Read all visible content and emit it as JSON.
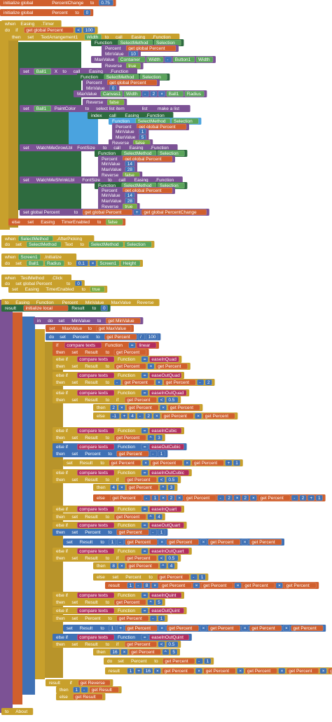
{
  "lines": [
    [
      "initialize global",
      "PercentChange",
      "to",
      "0.75"
    ],
    [
      "initialize global",
      "Percent",
      "to",
      "0"
    ],
    [
      "when",
      "Easing",
      ".Timer"
    ],
    [
      "do",
      "if",
      "get global Percent",
      "<",
      "100"
    ],
    [
      "then",
      "set",
      "TextArrangement1",
      "Width",
      "to",
      "call",
      "Easing",
      ".Function"
    ],
    [
      "Function",
      "SelectMethod",
      "Selection"
    ],
    [
      "Percent",
      "get global Percent"
    ],
    [
      "MinValue",
      "10"
    ],
    [
      "MaxValue",
      "Container",
      "Width",
      "-",
      "Button1",
      "Width"
    ],
    [
      "Reverse",
      "true"
    ],
    [
      "set",
      "Ball1",
      "X",
      "to",
      "call",
      "Easing",
      ".Function"
    ],
    [
      "Function",
      "SelectMethod",
      "Selection"
    ],
    [
      "Percent",
      "get global Percent"
    ],
    [
      "MinValue",
      "0"
    ],
    [
      "MaxValue",
      "Canvas1",
      "Width",
      "-",
      "2",
      "×",
      "Ball1",
      "Radius"
    ],
    [
      "Reverse",
      "false"
    ],
    [
      "set",
      "Ball1",
      "PaintColor",
      "to",
      "select list item",
      "list",
      "make a list"
    ],
    [
      "index",
      "call",
      "Easing",
      ".Function"
    ],
    [
      "Function",
      "SelectMethod",
      "Selection"
    ],
    [
      "Percent",
      "get global Percent"
    ],
    [
      "MinValue",
      "1"
    ],
    [
      "MaxValue",
      "5"
    ],
    [
      "Reverse",
      "false"
    ],
    [
      "set",
      "WatchMeGrowLbl",
      "FontSize",
      "to",
      "call",
      "Easing",
      ".Function"
    ],
    [
      "Function",
      "SelectMethod",
      "Selection"
    ],
    [
      "Percent",
      "get global Percent"
    ],
    [
      "MinValue",
      "14"
    ],
    [
      "MaxValue",
      "28"
    ],
    [
      "Reverse",
      "false"
    ],
    [
      "set",
      "WatchMeShrinkLbl",
      "FontSize",
      "to",
      "call",
      "Easing",
      ".Function"
    ],
    [
      "Function",
      "SelectMethod",
      "Selection"
    ],
    [
      "Percent",
      "get global Percent"
    ],
    [
      "MinValue",
      "14"
    ],
    [
      "MaxValue",
      "28"
    ],
    [
      "Reverse",
      "true"
    ],
    [
      "set global Percent",
      "to",
      "get global Percent",
      "+",
      "get global PercentChange"
    ],
    [
      "else",
      "set",
      "Easing",
      "TimerEnabled",
      "to",
      "false"
    ],
    [
      "when",
      "SelectMethod",
      ".AfterPicking"
    ],
    [
      "do",
      "set",
      "SelectMethod",
      "Text",
      "to",
      "SelectMethod",
      "Selection"
    ],
    [
      "when",
      "Screen1",
      ".Initialize"
    ],
    [
      "do",
      "set",
      "Ball1",
      "Radius",
      "to",
      "0.1",
      "×",
      "Screen1",
      "Height"
    ],
    [
      "when",
      "TestMethod",
      ".Click"
    ],
    [
      "do",
      "set global Percent",
      "to",
      "0"
    ],
    [
      "set",
      "Easing",
      "TimerEnabled",
      "to",
      "true"
    ],
    [
      "to",
      "Easing",
      "Function",
      "Percent",
      "MinValue",
      "MaxValue",
      "Reverse"
    ],
    [
      "result",
      "initialize local",
      "Result",
      "to",
      "0"
    ],
    [
      "in",
      "do",
      "set",
      "MinValue",
      "to",
      "get MinValue"
    ],
    [
      "set",
      "MaxValue",
      "to",
      "get MaxValue"
    ],
    [
      "do",
      "set",
      "Percent",
      "to",
      "get Percent",
      "/",
      "100"
    ],
    [
      "if",
      "compare texts",
      "Function",
      "=",
      "linear"
    ],
    [
      "then",
      "set",
      "Result",
      "to",
      "get Percent"
    ],
    [
      "else if",
      "compare texts",
      "Function",
      "=",
      "easeInQuad"
    ],
    [
      "then",
      "set",
      "Result",
      "to",
      "get Percent",
      "×",
      "get Percent"
    ],
    [
      "else if",
      "compare texts",
      "Function",
      "=",
      "easeOutQuad"
    ],
    [
      "then",
      "set",
      "Result",
      "to",
      "-",
      "get Percent",
      "×",
      "get Percent",
      "-",
      "2"
    ],
    [
      "else if",
      "compare texts",
      "Function",
      "=",
      "easeInOutQuad"
    ],
    [
      "then",
      "set",
      "Result",
      "to",
      "if",
      "get Percent",
      "<",
      "0.5"
    ],
    [
      "then",
      "2",
      "×",
      "get Percent",
      "×",
      "get Percent"
    ],
    [
      "else",
      "-1",
      "+",
      "4",
      "-",
      "2",
      "×",
      "get Percent",
      "×",
      "get Percent"
    ],
    [
      "else if",
      "compare texts",
      "Function",
      "=",
      "easeInCubic"
    ],
    [
      "then",
      "set",
      "Result",
      "to",
      "get Percent",
      "^",
      "3"
    ],
    [
      "else if",
      "compare texts",
      "Function",
      "=",
      "easeOutCubic"
    ],
    [
      "then",
      "set",
      "Percent",
      "to",
      "get Percent",
      "-",
      "1"
    ],
    [
      "set",
      "Result",
      "to",
      "get Percent",
      "×",
      "get Percent",
      "×",
      "get Percent",
      "+",
      "1"
    ],
    [
      "else if",
      "compare texts",
      "Function",
      "=",
      "easeInOutCubic"
    ],
    [
      "then",
      "set",
      "Result",
      "to",
      "if",
      "get Percent",
      "<",
      "0.5"
    ],
    [
      "then",
      "4",
      "×",
      "get Percent",
      "^",
      "3"
    ],
    [
      "else",
      "get Percent",
      "-",
      "1",
      "×",
      "2",
      "×",
      "get Percent",
      "-",
      "2",
      "×",
      "2",
      "×",
      "get Percent",
      "-",
      "2",
      "+",
      "1"
    ],
    [
      "else if",
      "compare texts",
      "Function",
      "=",
      "easeInQuart"
    ],
    [
      "then",
      "set",
      "Result",
      "to",
      "get Percent",
      "^",
      "4"
    ],
    [
      "else if",
      "compare texts",
      "Function",
      "=",
      "easeOutQuart"
    ],
    [
      "then",
      "set",
      "Percent",
      "to",
      "get Percent",
      "-",
      "1"
    ],
    [
      "set",
      "Result",
      "to",
      "1",
      "-",
      "get Percent",
      "×",
      "get Percent",
      "×",
      "get Percent",
      "×",
      "get Percent"
    ],
    [
      "else if",
      "compare texts",
      "Function",
      "=",
      "easeInOutQuart"
    ],
    [
      "then",
      "set",
      "Result",
      "to",
      "if",
      "get Percent",
      "<",
      "0.5"
    ],
    [
      "then",
      "8",
      "×",
      "get Percent",
      "^",
      "4"
    ],
    [
      "else",
      "set",
      "Percent",
      "to",
      "get Percent",
      "-",
      "1"
    ],
    [
      "result",
      "1",
      "-",
      "8",
      "×",
      "get Percent",
      "×",
      "get Percent",
      "×",
      "get Percent",
      "×",
      "get Percent"
    ],
    [
      "else if",
      "compare texts",
      "Function",
      "=",
      "easeInQuint"
    ],
    [
      "then",
      "set",
      "Result",
      "to",
      "get Percent",
      "^",
      "5"
    ],
    [
      "else if",
      "compare texts",
      "Function",
      "=",
      "easeOutQuint"
    ],
    [
      "then",
      "set",
      "Percent",
      "to",
      "get Percent",
      "-",
      "1"
    ],
    [
      "set",
      "Result",
      "to",
      "1",
      "+",
      "get Percent",
      "×",
      "get Percent",
      "×",
      "get Percent",
      "×",
      "get Percent",
      "×",
      "get Percent"
    ],
    [
      "else if",
      "compare texts",
      "Function",
      "=",
      "easeInOutQuint"
    ],
    [
      "then",
      "set",
      "Result",
      "to",
      "if",
      "get Percent",
      "<",
      "0.5"
    ],
    [
      "then",
      "16",
      "×",
      "get Percent",
      "^",
      "5"
    ],
    [
      "do",
      "set",
      "Percent",
      "to",
      "get Percent",
      "-",
      "1"
    ],
    [
      "result",
      "1",
      "+",
      "16",
      "×",
      "get Percent",
      "×",
      "get Percent",
      "×",
      "get Percent",
      "×",
      "get Percent",
      "×",
      "get Percent"
    ],
    [
      "result",
      "if",
      "get Reverse"
    ],
    [
      "then",
      "1",
      "-",
      "get Result"
    ],
    [
      "else",
      "get Result"
    ],
    [
      "to",
      "About"
    ]
  ]
}
